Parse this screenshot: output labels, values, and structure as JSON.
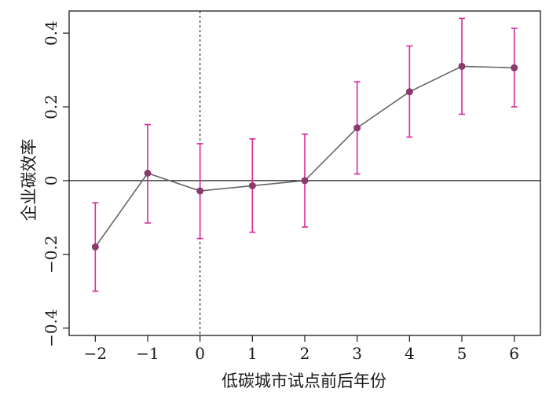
{
  "chart_data": {
    "type": "line",
    "title": "",
    "xlabel": "低碳城市试点前后年份",
    "ylabel": "企业碳效率",
    "x": [
      -2,
      -1,
      0,
      1,
      2,
      3,
      4,
      5,
      6
    ],
    "series": [
      {
        "values": [
          -0.18,
          0.02,
          -0.028,
          -0.014,
          0.0,
          0.143,
          0.241,
          0.31,
          0.306
        ],
        "ci_lower": [
          -0.3,
          -0.115,
          -0.157,
          -0.14,
          -0.126,
          0.018,
          0.118,
          0.18,
          0.2
        ],
        "ci_upper": [
          -0.06,
          0.152,
          0.1,
          0.113,
          0.126,
          0.268,
          0.365,
          0.44,
          0.413
        ]
      }
    ],
    "xlim": [
      -2.5,
      6.5
    ],
    "ylim": [
      -0.42,
      0.46
    ],
    "xticks": [
      "−2",
      "−1",
      "0",
      "1",
      "2",
      "3",
      "4",
      "5",
      "6"
    ],
    "yticks": [
      {
        "value": -0.4,
        "label": "−0.4"
      },
      {
        "value": -0.2,
        "label": "−0.2"
      },
      {
        "value": 0,
        "label": "0"
      },
      {
        "value": 0.2,
        "label": "0.2"
      },
      {
        "value": 0.4,
        "label": "0.4"
      }
    ],
    "reference_lines": {
      "horizontal_y": 0,
      "vertical_dashed_x": 0
    },
    "grid": false,
    "legend": "none",
    "colors": {
      "line": "#666666",
      "point": "#8b3a6e",
      "error_bar": "#d9299b",
      "axis": "#1a1a1a"
    }
  }
}
